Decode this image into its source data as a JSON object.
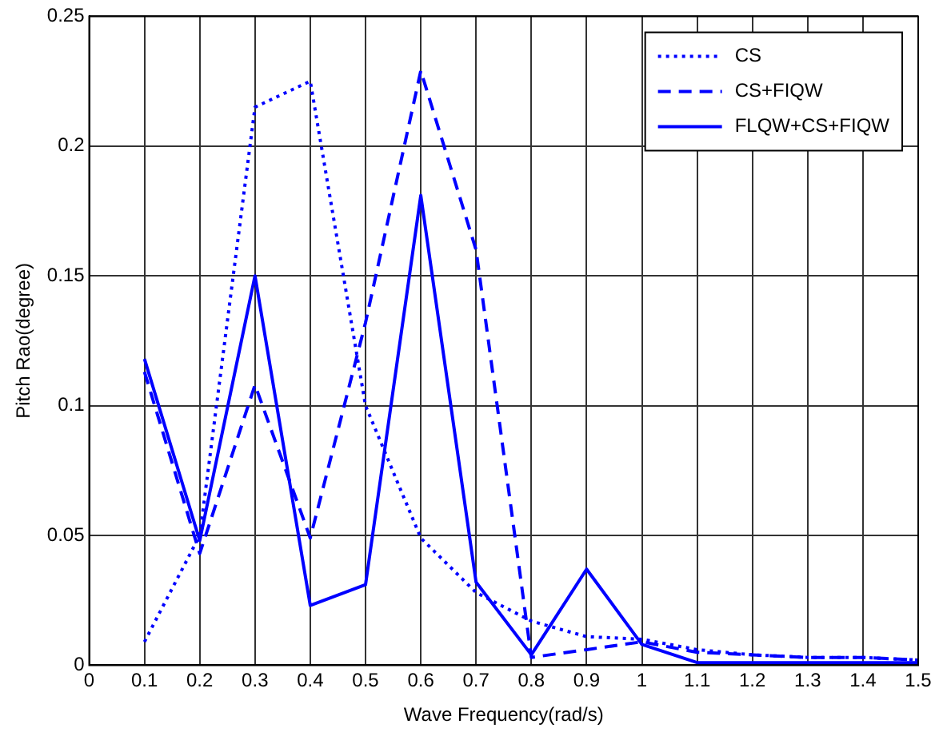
{
  "chart_data": {
    "type": "line",
    "xlabel": "Wave Frequency(rad/s)",
    "ylabel": "Pitch Rao(degree)",
    "x": [
      0.1,
      0.2,
      0.3,
      0.4,
      0.5,
      0.6,
      0.7,
      0.8,
      0.9,
      1.0,
      1.1,
      1.2,
      1.3,
      1.4,
      1.5
    ],
    "series": [
      {
        "name": "CS",
        "color": "#0000ff",
        "line_style": "dotted",
        "values": [
          0.009,
          0.05,
          0.215,
          0.225,
          0.1,
          0.049,
          0.028,
          0.017,
          0.011,
          0.01,
          0.006,
          0.004,
          0.003,
          0.003,
          0.002
        ]
      },
      {
        "name": "CS+FIQW",
        "color": "#0000ff",
        "line_style": "dashed",
        "values": [
          0.113,
          0.043,
          0.108,
          0.049,
          0.132,
          0.229,
          0.16,
          0.003,
          0.006,
          0.009,
          0.005,
          0.004,
          0.003,
          0.003,
          0.002
        ]
      },
      {
        "name": "FLQW+CS+FIQW",
        "color": "#0000ff",
        "line_style": "solid",
        "values": [
          0.118,
          0.048,
          0.15,
          0.023,
          0.031,
          0.181,
          0.032,
          0.004,
          0.037,
          0.008,
          0.001,
          0.001,
          0.001,
          0.001,
          0.001
        ]
      }
    ],
    "xlim": [
      0,
      1.5
    ],
    "xticks": [
      0,
      0.1,
      0.2,
      0.3,
      0.4,
      0.5,
      0.6,
      0.7,
      0.8,
      0.9,
      1,
      1.1,
      1.2,
      1.3,
      1.4,
      1.5
    ],
    "ylim": [
      0,
      0.25
    ],
    "yticks": [
      0,
      0.05,
      0.1,
      0.15,
      0.2,
      0.25
    ],
    "grid": true,
    "legend": "top right",
    "marker": "none"
  }
}
